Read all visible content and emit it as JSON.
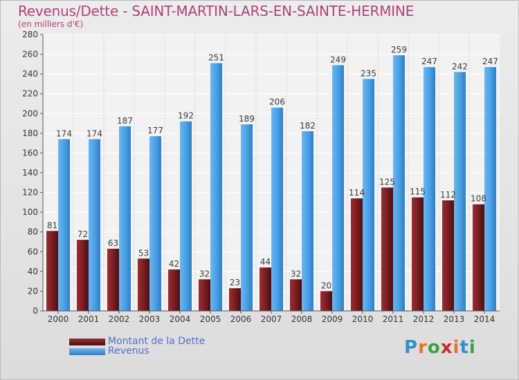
{
  "header": {
    "title": "Revenus/Dette - SAINT-MARTIN-LARS-EN-SAINTE-HERMINE",
    "subtitle": "(en milliers d'€)"
  },
  "logo": {
    "text": "Proxiti",
    "letters": [
      "P",
      "r",
      "o",
      "x",
      "i",
      "t",
      "i"
    ],
    "colors": [
      "#2f8fd1",
      "#e8722a",
      "#3aa04a",
      "#cc2a2a",
      "#e8722a",
      "#2f8fd1",
      "#3aa04a"
    ]
  },
  "chart_data": {
    "type": "bar",
    "title": "Revenus/Dette - SAINT-MARTIN-LARS-EN-SAINTE-HERMINE",
    "ylabel": "(en milliers d'€)",
    "xlabel": "",
    "categories": [
      "2000",
      "2001",
      "2002",
      "2003",
      "2004",
      "2005",
      "2006",
      "2007",
      "2008",
      "2009",
      "2010",
      "2011",
      "2012",
      "2013",
      "2014"
    ],
    "series": [
      {
        "name": "Montant de la Dette",
        "color": "#7a1e22",
        "values": [
          81,
          72,
          63,
          53,
          42,
          32,
          23,
          44,
          32,
          20,
          114,
          125,
          115,
          112,
          108
        ]
      },
      {
        "name": "Revenus",
        "color": "#4aa1e6",
        "values": [
          174,
          174,
          187,
          177,
          192,
          251,
          189,
          206,
          182,
          249,
          235,
          259,
          247,
          242,
          247
        ]
      }
    ],
    "ylim": [
      0,
      280
    ],
    "yticks": [
      0,
      20,
      40,
      60,
      80,
      100,
      120,
      140,
      160,
      180,
      200,
      220,
      240,
      260,
      280
    ],
    "grid": true,
    "legend_position": "bottom-left"
  }
}
